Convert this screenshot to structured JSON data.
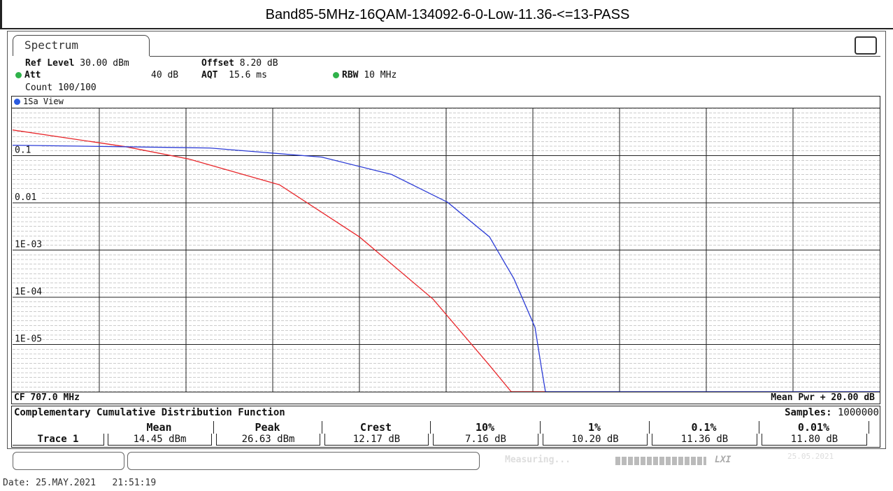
{
  "header": {
    "title": "Band85-5MHz-16QAM-134092-6-0-Low-11.36-<=13-PASS"
  },
  "tab": "Spectrum",
  "settings": {
    "ref_level": {
      "label": "Ref Level",
      "value": "30.00 dBm"
    },
    "offset": {
      "label": "Offset",
      "value": "8.20 dB"
    },
    "att": {
      "label": "Att",
      "value": "40 dB"
    },
    "aqt": {
      "label": "AQT",
      "value": "15.6 ms"
    },
    "rbw": {
      "label": "RBW",
      "value": "10 MHz"
    },
    "count": "Count 100/100"
  },
  "view_label": "1Sa View",
  "chart_data": {
    "type": "line",
    "log_y": true,
    "grid": true,
    "xlim": [
      0,
      20
    ],
    "ylim": [
      1e-06,
      1
    ],
    "yticks": [
      0.1,
      0.01,
      {
        "value": 0.001,
        "label": "1E-03"
      },
      {
        "value": 0.0001,
        "label": "1E-04"
      },
      {
        "value": 1e-05,
        "label": "1E-05"
      }
    ],
    "series": [
      {
        "color": "#e8262a",
        "x": [
          0,
          2.6,
          4.06,
          6.16,
          8.0,
          9.7,
          11.0,
          11.5,
          12.3
        ],
        "values": [
          0.35,
          0.155,
          0.085,
          0.024,
          0.0019,
          9.1e-05,
          3.6e-06,
          1e-06,
          1e-06
        ]
      },
      {
        "color": "#2b3bd6",
        "x": [
          0,
          4.55,
          7.13,
          8.74,
          10.03,
          11.0,
          11.56,
          12.05,
          12.2,
          12.29,
          20
        ],
        "values": [
          0.166,
          0.145,
          0.093,
          0.04,
          0.0103,
          0.0019,
          0.00025,
          2.3e-05,
          3.1e-06,
          1e-06,
          1e-06
        ]
      }
    ]
  },
  "center_frequency": "CF 707.0 MHz",
  "span_label": "Mean Pwr + 20.00 dB",
  "table": {
    "title": "Complementary Cumulative Distribution Function",
    "samples_label": "Samples:",
    "samples_value": "1000000",
    "columns": [
      "Mean",
      "Peak",
      "Crest",
      "10%",
      "1%",
      "0.1%",
      "0.01%"
    ],
    "rows": [
      {
        "label": "Trace 1",
        "cells": [
          "14.45 dBm",
          "26.63 dBm",
          "12.17 dB",
          "7.16 dB",
          "10.20 dB",
          "11.36 dB",
          "11.80 dB"
        ]
      }
    ]
  },
  "status": {
    "measuring": "Measuring...",
    "instrument": "LXI",
    "date": "25.05.2021"
  },
  "footer": "Date: 25.MAY.2021   21:51:19"
}
